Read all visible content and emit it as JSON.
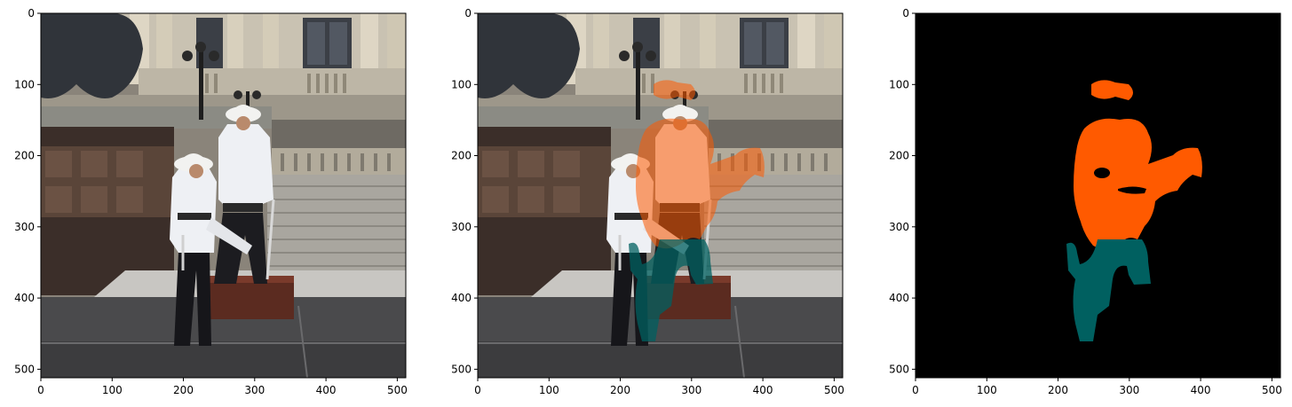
{
  "figure": {
    "panels": [
      {
        "name": "original-photo",
        "content": "photo",
        "x_ticks": [
          "0",
          "100",
          "200",
          "300",
          "400",
          "500"
        ],
        "y_ticks": [
          "0",
          "100",
          "200",
          "300",
          "400",
          "500"
        ],
        "x_range": [
          0,
          512
        ],
        "y_range": [
          512,
          0
        ]
      },
      {
        "name": "overlay-photo",
        "content": "overlay",
        "x_ticks": [
          "0",
          "100",
          "200",
          "300",
          "400",
          "500"
        ],
        "y_ticks": [
          "0",
          "100",
          "200",
          "300",
          "400",
          "500"
        ],
        "x_range": [
          0,
          512
        ],
        "y_range": [
          512,
          0
        ]
      },
      {
        "name": "segmentation-mask",
        "content": "mask",
        "x_ticks": [
          "0",
          "100",
          "200",
          "300",
          "400",
          "500"
        ],
        "y_ticks": [
          "0",
          "100",
          "200",
          "300",
          "400",
          "500"
        ],
        "x_range": [
          0,
          512
        ],
        "y_range": [
          512,
          0
        ]
      }
    ],
    "mask_colors": {
      "background": "#000000",
      "upper_body": "#ff5a00",
      "lower_body": "#006060"
    }
  }
}
